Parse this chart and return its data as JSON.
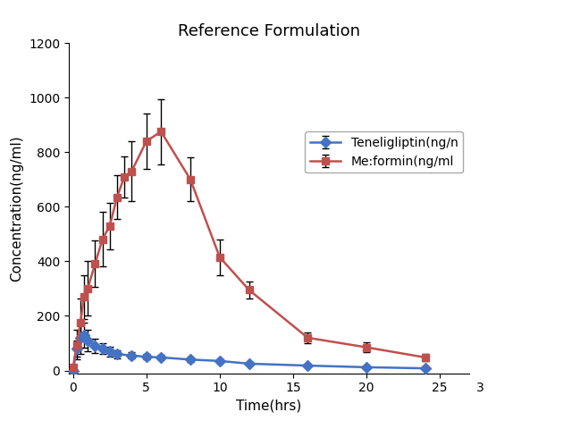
{
  "title": "Reference Formulation",
  "xlabel": "Time(hrs)",
  "ylabel": "Concentration(ng/ml)",
  "xlim": [
    -0.3,
    27
  ],
  "ylim": [
    -10,
    1200
  ],
  "xticks": [
    0,
    5,
    10,
    15,
    20,
    25
  ],
  "yticks": [
    0,
    200,
    400,
    600,
    800,
    1000,
    1200
  ],
  "teneligliptin": {
    "x": [
      0,
      0.25,
      0.5,
      0.75,
      1.0,
      1.5,
      2.0,
      2.5,
      3.0,
      4.0,
      5.0,
      6.0,
      8.0,
      10.0,
      12.0,
      16.0,
      20.0,
      24.0
    ],
    "y": [
      0,
      80,
      120,
      130,
      110,
      90,
      80,
      70,
      60,
      55,
      50,
      48,
      40,
      35,
      25,
      18,
      12,
      8
    ],
    "yerr": [
      0,
      30,
      60,
      45,
      40,
      25,
      20,
      18,
      15,
      12,
      10,
      8,
      8,
      5,
      5,
      4,
      3,
      2
    ],
    "color": "#4472C4",
    "marker": "D",
    "label": "Teneligliptin(ng/n"
  },
  "metformin": {
    "x": [
      0,
      0.25,
      0.5,
      0.75,
      1.0,
      1.5,
      2.0,
      2.5,
      3.0,
      3.5,
      4.0,
      5.0,
      6.0,
      8.0,
      10.0,
      12.0,
      16.0,
      20.0,
      24.0
    ],
    "y": [
      10,
      95,
      175,
      270,
      300,
      390,
      480,
      530,
      635,
      710,
      730,
      840,
      875,
      700,
      415,
      295,
      120,
      85,
      48
    ],
    "yerr": [
      5,
      55,
      90,
      80,
      100,
      85,
      100,
      85,
      80,
      75,
      110,
      100,
      120,
      80,
      65,
      30,
      20,
      18,
      12
    ],
    "color": "#C0504D",
    "marker": "s",
    "label": "Me:formin(ng/ml"
  },
  "title_fontsize": 13,
  "axis_label_fontsize": 11,
  "tick_fontsize": 10,
  "legend_fontsize": 10,
  "background_color": "#ffffff",
  "line_width": 1.8,
  "marker_size": 6,
  "capsize": 3
}
